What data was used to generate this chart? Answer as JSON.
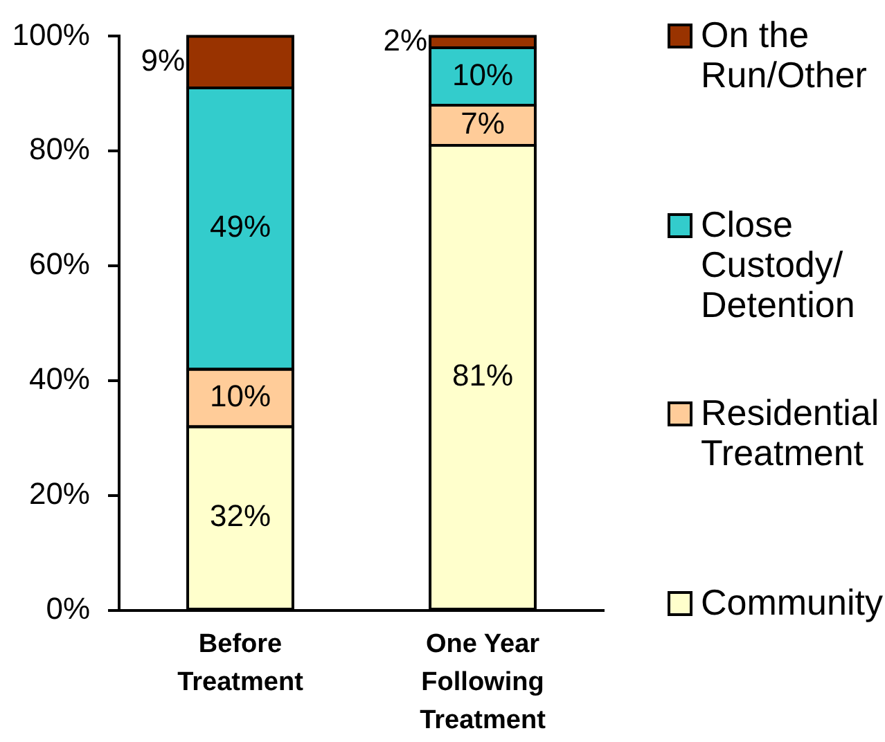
{
  "chart_data": {
    "type": "bar",
    "stacked": true,
    "categories": [
      "Before Treatment",
      "One Year Following Treatment"
    ],
    "series": [
      {
        "name": "Community",
        "color": "#ffffcc",
        "values": [
          32,
          81
        ],
        "value_labels": [
          "32%",
          "81%"
        ]
      },
      {
        "name": "Residential Treatment",
        "color": "#ffcc99",
        "values": [
          10,
          7
        ],
        "value_labels": [
          "10%",
          "7%"
        ]
      },
      {
        "name": "Close Custody/Detention",
        "color": "#33cccc",
        "values": [
          49,
          10
        ],
        "value_labels": [
          "49%",
          "10%"
        ]
      },
      {
        "name": "On the Run/Other",
        "color": "#993300",
        "values": [
          9,
          2
        ],
        "value_labels": [
          "9%",
          "2%"
        ]
      }
    ],
    "ylim": [
      0,
      100
    ],
    "yticks": [
      {
        "value": 0,
        "label": "0%"
      },
      {
        "value": 20,
        "label": "20%"
      },
      {
        "value": 40,
        "label": "40%"
      },
      {
        "value": 60,
        "label": "60%"
      },
      {
        "value": 80,
        "label": "80%"
      },
      {
        "value": 100,
        "label": "100%"
      }
    ],
    "grid": false,
    "legend": "right"
  }
}
